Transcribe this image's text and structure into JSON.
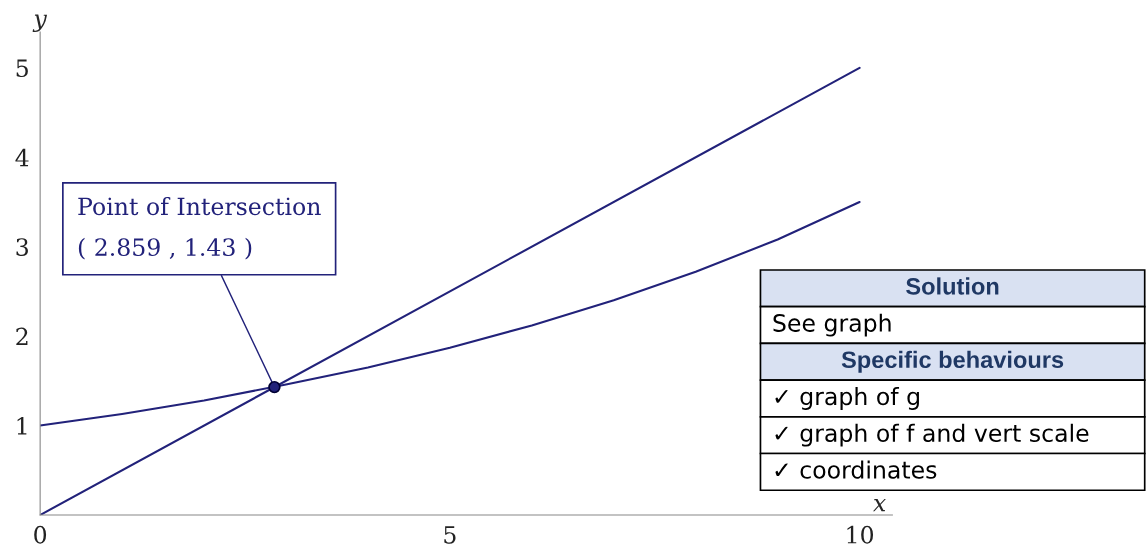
{
  "chart_data": {
    "type": "line",
    "xlabel": "x",
    "ylabel": "y",
    "xlim": [
      0,
      10.4
    ],
    "ylim": [
      0,
      5.4
    ],
    "xticks": [
      0,
      5,
      10
    ],
    "yticks": [
      1,
      2,
      3,
      4,
      5
    ],
    "grid": false,
    "marker": "none",
    "line_style": "solid",
    "series": [
      {
        "color": "#22227a",
        "x": [
          0,
          10
        ],
        "values": [
          0,
          5
        ]
      },
      {
        "color": "#22227a",
        "x": [
          0,
          1,
          2,
          3,
          4,
          5,
          6,
          7,
          8,
          9,
          10
        ],
        "values": [
          1,
          1.13,
          1.28,
          1.46,
          1.65,
          1.87,
          2.12,
          2.4,
          2.72,
          3.08,
          3.5
        ]
      },
      {
        "type": "scatter",
        "marker": "circle",
        "color": "#22227a",
        "x": [
          2.859
        ],
        "values": [
          1.43
        ]
      }
    ],
    "annotations": [
      {
        "text": "Point of Intersection\n( 2.859 , 1.43 )",
        "x": 2.859,
        "y": 1.43
      },
      "Solution",
      "See graph",
      "Specific behaviours",
      "✓ graph of g",
      "✓ graph of f and vert scale",
      "✓ coordinates"
    ]
  }
}
